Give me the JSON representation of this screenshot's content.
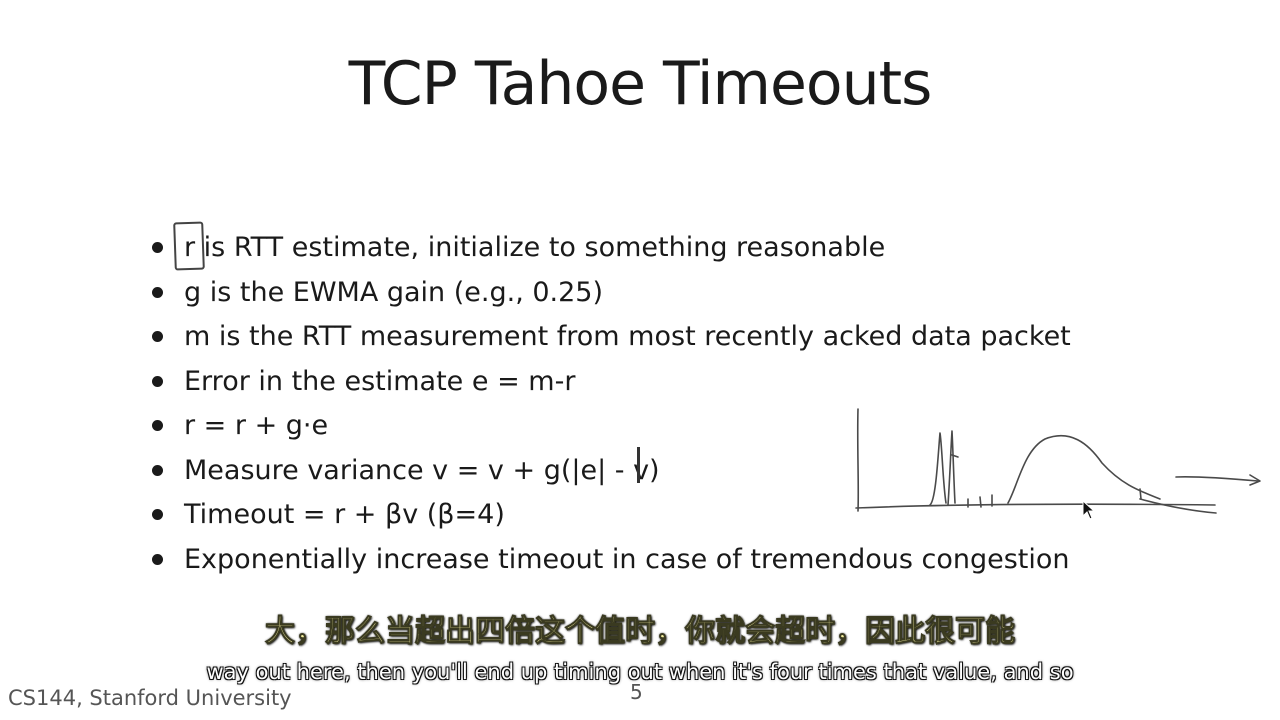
{
  "slide": {
    "title": "TCP Tahoe Timeouts",
    "bullets": [
      "r is RTT estimate, initialize to something reasonable",
      "g is the EWMA gain (e.g., 0.25)",
      "m is the RTT measurement from most recently acked data packet",
      "Error in the estimate e = m-r",
      "r = r + g·e",
      "Measure variance v = v + g(|e| - v)",
      "Timeout = r + βv (β=4)",
      "Exponentially increase timeout in case of tremendous congestion"
    ],
    "footer": "CS144, Stanford University",
    "page_number": "5"
  },
  "subtitles": {
    "chinese": "大，那么当超出四倍这个值时，你就会超时，因此很可能",
    "english": "way out here, then you'll end up timing out when it's four times that value, and so"
  },
  "annotations": {
    "r_box_icon": "hand-drawn-box-icon",
    "variance_bar_icon": "hand-drawn-bar-icon",
    "sketch_icon": "hand-drawn-rtt-sketch-icon",
    "cursor_icon": "mouse-pointer-icon"
  }
}
